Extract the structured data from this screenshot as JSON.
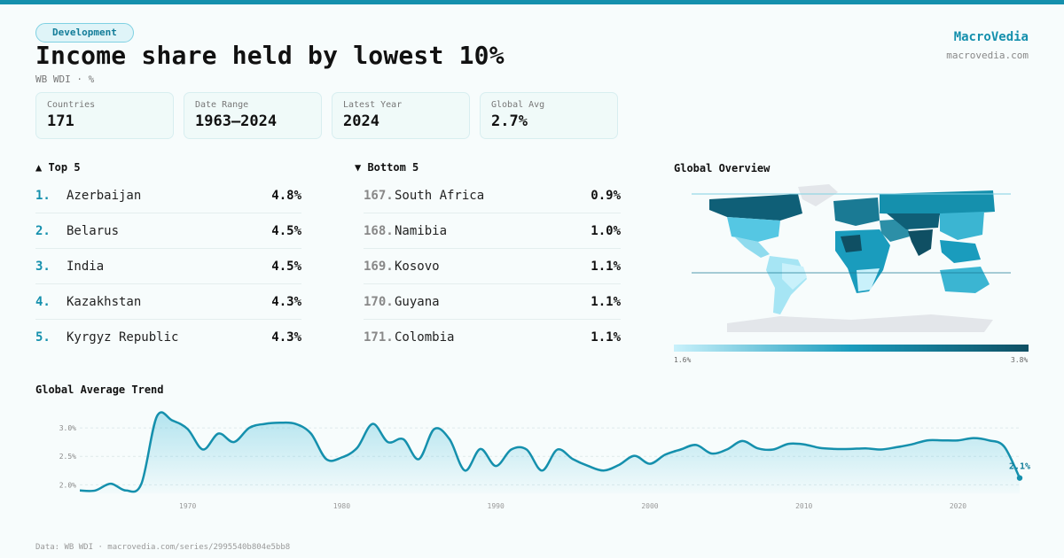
{
  "header": {
    "badge": "Development",
    "title": "Income share held by lowest 10%",
    "subtitle": "WB WDI · %",
    "brand_name": "MacroVedia",
    "brand_url": "macrovedia.com"
  },
  "stats": [
    {
      "label": "Countries",
      "value": "171"
    },
    {
      "label": "Date Range",
      "value": "1963–2024"
    },
    {
      "label": "Latest Year",
      "value": "2024"
    },
    {
      "label": "Global Avg",
      "value": "2.7%"
    }
  ],
  "top5": {
    "heading": "▲ Top 5",
    "items": [
      {
        "rank": "1.",
        "name": "Azerbaijan",
        "value": "4.8%"
      },
      {
        "rank": "2.",
        "name": "Belarus",
        "value": "4.5%"
      },
      {
        "rank": "3.",
        "name": "India",
        "value": "4.5%"
      },
      {
        "rank": "4.",
        "name": "Kazakhstan",
        "value": "4.3%"
      },
      {
        "rank": "5.",
        "name": "Kyrgyz Republic",
        "value": "4.3%"
      }
    ]
  },
  "bottom5": {
    "heading": "▼ Bottom 5",
    "items": [
      {
        "rank": "167.",
        "name": "South Africa",
        "value": "0.9%"
      },
      {
        "rank": "168.",
        "name": "Namibia",
        "value": "1.0%"
      },
      {
        "rank": "169.",
        "name": "Kosovo",
        "value": "1.1%"
      },
      {
        "rank": "170.",
        "name": "Guyana",
        "value": "1.1%"
      },
      {
        "rank": "171.",
        "name": "Colombia",
        "value": "1.1%"
      }
    ]
  },
  "map": {
    "title": "Global Overview",
    "scale_min": "1.6%",
    "scale_max": "3.8%",
    "colors": {
      "light": "#c9f1fb",
      "mid": "#1a9cbd",
      "dark": "#0f4f63",
      "nodata": "#e3e6ea"
    }
  },
  "trend": {
    "title": "Global Average Trend",
    "last_label": "2.1%",
    "line_color": "#1590ad"
  },
  "chart_data": {
    "type": "area",
    "title": "Global Average Trend",
    "xlabel": "",
    "ylabel": "",
    "xlim": [
      1963,
      2024
    ],
    "ylim": [
      1.85,
      3.25
    ],
    "y_ticks": [
      2.0,
      2.5,
      3.0
    ],
    "y_tick_labels": [
      "2.0%",
      "2.5%",
      "3.0%"
    ],
    "x_ticks": [
      1970,
      1980,
      1990,
      2000,
      2010,
      2020
    ],
    "grid": true,
    "x": [
      1963,
      1964,
      1965,
      1966,
      1967,
      1968,
      1969,
      1970,
      1971,
      1972,
      1973,
      1974,
      1975,
      1976,
      1977,
      1978,
      1979,
      1980,
      1981,
      1982,
      1983,
      1984,
      1985,
      1986,
      1987,
      1988,
      1989,
      1990,
      1991,
      1992,
      1993,
      1994,
      1995,
      1996,
      1997,
      1998,
      1999,
      2000,
      2001,
      2002,
      2003,
      2004,
      2005,
      2006,
      2007,
      2008,
      2009,
      2010,
      2011,
      2012,
      2013,
      2014,
      2015,
      2016,
      2017,
      2018,
      2019,
      2020,
      2021,
      2022,
      2023,
      2024
    ],
    "y": [
      1.9,
      1.9,
      2.02,
      1.9,
      2.02,
      3.2,
      3.13,
      2.98,
      2.62,
      2.9,
      2.75,
      3.0,
      3.07,
      3.09,
      3.07,
      2.9,
      2.45,
      2.48,
      2.65,
      3.07,
      2.75,
      2.8,
      2.45,
      2.98,
      2.8,
      2.25,
      2.63,
      2.33,
      2.62,
      2.62,
      2.25,
      2.62,
      2.45,
      2.33,
      2.25,
      2.35,
      2.51,
      2.37,
      2.53,
      2.62,
      2.7,
      2.55,
      2.62,
      2.77,
      2.64,
      2.62,
      2.72,
      2.71,
      2.65,
      2.63,
      2.63,
      2.64,
      2.62,
      2.66,
      2.71,
      2.78,
      2.78,
      2.78,
      2.82,
      2.78,
      2.67,
      2.12
    ]
  }
}
